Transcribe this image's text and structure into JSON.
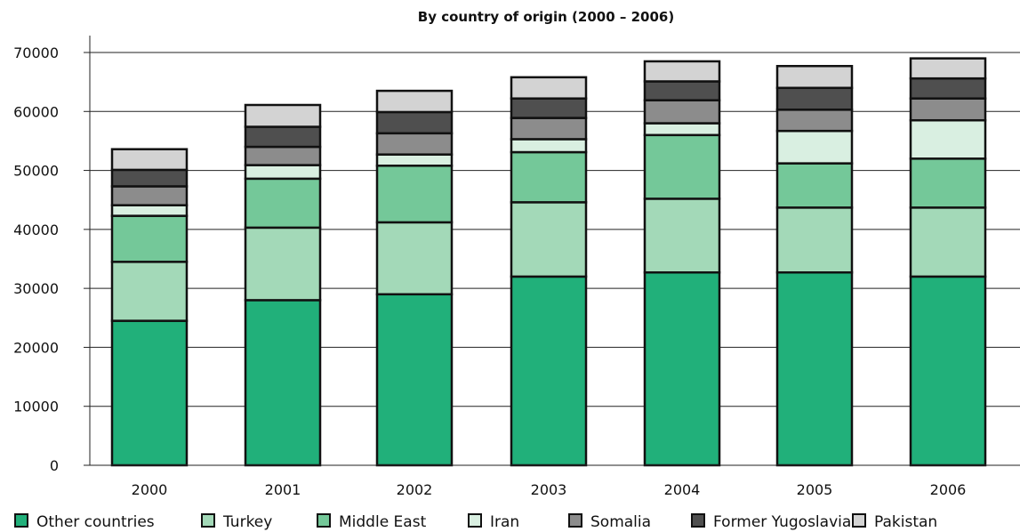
{
  "chart_data": {
    "type": "bar",
    "stacked": true,
    "title": "By country of origin (2000 – 2006)",
    "xlabel": "",
    "ylabel": "",
    "categories": [
      "2000",
      "2001",
      "2002",
      "2003",
      "2004",
      "2005",
      "2006"
    ],
    "ylim": [
      0,
      70000
    ],
    "yticks": [
      0,
      10000,
      20000,
      30000,
      40000,
      50000,
      60000,
      70000
    ],
    "grid": "horizontal",
    "legend_position": "bottom",
    "series": [
      {
        "name": "Other countries",
        "color": "#21b07a",
        "values": [
          24500,
          28000,
          29000,
          32000,
          32700,
          32700,
          32000
        ]
      },
      {
        "name": "Turkey",
        "color": "#a3d9b8",
        "values": [
          10000,
          12300,
          12200,
          12600,
          12500,
          11000,
          11700
        ]
      },
      {
        "name": "Middle East",
        "color": "#74c899",
        "values": [
          7800,
          8300,
          9600,
          8500,
          10800,
          7500,
          8300
        ]
      },
      {
        "name": "Iran",
        "color": "#d9efe1",
        "values": [
          1800,
          2300,
          1900,
          2200,
          2000,
          5500,
          6500
        ]
      },
      {
        "name": "Somalia",
        "color": "#8c8c8c",
        "values": [
          3200,
          3100,
          3600,
          3600,
          3900,
          3600,
          3700
        ]
      },
      {
        "name": "Former Yugoslavia",
        "color": "#4f4f4f",
        "values": [
          2800,
          3400,
          3600,
          3300,
          3200,
          3700,
          3400
        ]
      },
      {
        "name": "Pakistan",
        "color": "#d3d3d3",
        "values": [
          3500,
          3700,
          3600,
          3600,
          3400,
          3700,
          3400
        ]
      }
    ]
  }
}
